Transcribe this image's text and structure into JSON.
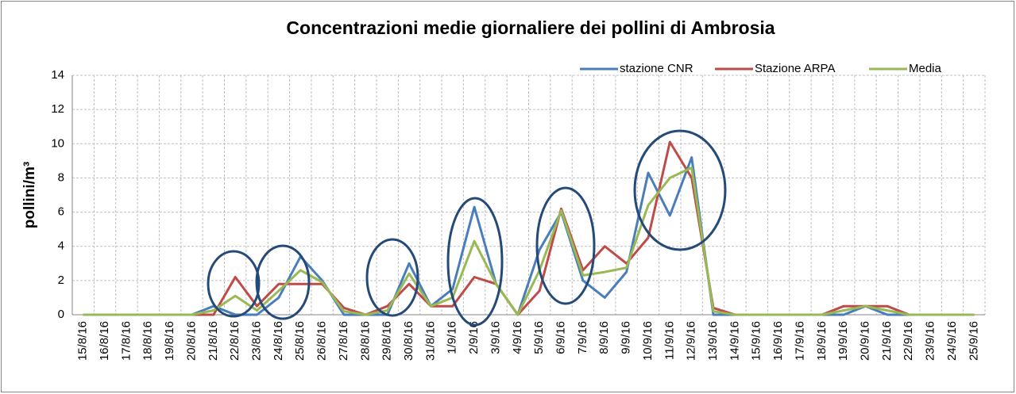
{
  "chart_data": {
    "type": "line",
    "title": "Concentrazioni medie giornaliere dei pollini di Ambrosia",
    "y_label": "pollini/m³",
    "categories": [
      "15/8/16",
      "16/8/16",
      "17/8/16",
      "18/8/16",
      "19/8/16",
      "20/8/16",
      "21/8/16",
      "22/8/16",
      "23/8/16",
      "24/8/16",
      "25/8/16",
      "26/8/16",
      "27/8/16",
      "28/8/16",
      "29/8/16",
      "30/8/16",
      "31/8/16",
      "1/9/16",
      "2/9/16",
      "3/9/16",
      "4/9/16",
      "5/9/16",
      "6/9/16",
      "7/9/16",
      "8/9/16",
      "9/9/16",
      "10/9/16",
      "11/9/16",
      "12/9/16",
      "13/9/16",
      "14/9/16",
      "15/9/16",
      "16/9/16",
      "17/9/16",
      "18/9/16",
      "19/9/16",
      "20/9/16",
      "21/9/16",
      "22/9/16",
      "23/9/16",
      "24/9/16",
      "25/9/16"
    ],
    "series": [
      {
        "name": "stazione CNR",
        "color": "#4a7ebb",
        "values": [
          0,
          0,
          0,
          0,
          0,
          0,
          0.5,
          0,
          0,
          1.0,
          3.4,
          2.0,
          0,
          0,
          0,
          3.0,
          0.5,
          1.5,
          6.3,
          1.8,
          0,
          3.8,
          6.0,
          2.0,
          1.0,
          2.5,
          8.3,
          5.8,
          9.2,
          0,
          0,
          0,
          0,
          0,
          0,
          0,
          0.5,
          0,
          0,
          0,
          0,
          0
        ]
      },
      {
        "name": "Stazione ARPA",
        "color": "#be4b48",
        "values": [
          0,
          0,
          0,
          0,
          0,
          0,
          0,
          2.2,
          0.5,
          1.8,
          1.8,
          1.8,
          0.4,
          0,
          0.5,
          1.8,
          0.5,
          0.5,
          2.2,
          1.8,
          0,
          1.4,
          6.2,
          2.6,
          4.0,
          3.0,
          4.5,
          10.1,
          8.0,
          0.4,
          0,
          0,
          0,
          0,
          0,
          0.5,
          0.5,
          0.5,
          0,
          0,
          0,
          0
        ]
      },
      {
        "name": "Media",
        "color": "#98b954",
        "values": [
          0,
          0,
          0,
          0,
          0,
          0,
          0.25,
          1.1,
          0.25,
          1.4,
          2.6,
          1.9,
          0.2,
          0,
          0.25,
          2.4,
          0.5,
          1.0,
          4.3,
          1.8,
          0,
          2.6,
          6.1,
          2.3,
          2.5,
          2.75,
          6.4,
          8.0,
          8.6,
          0.2,
          0,
          0,
          0,
          0,
          0,
          0.25,
          0.5,
          0.25,
          0,
          0,
          0,
          0
        ]
      }
    ],
    "ylim": [
      0,
      14
    ],
    "yticks": [
      0,
      2,
      4,
      6,
      8,
      10,
      12,
      14
    ],
    "grid": true,
    "legend": "top-right"
  }
}
